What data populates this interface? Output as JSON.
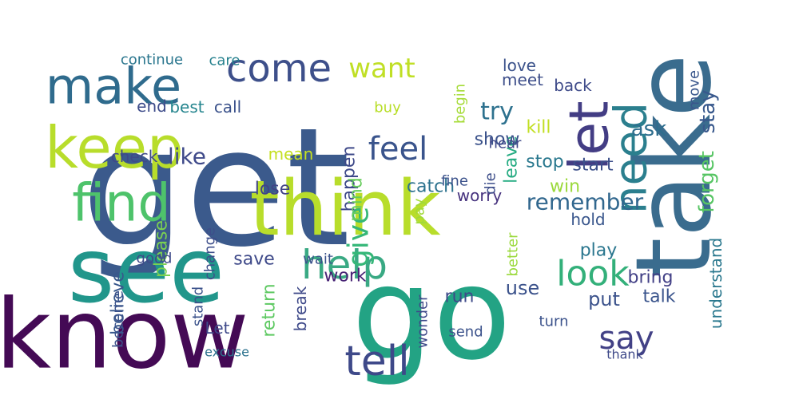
{
  "words": [
    {
      "text": "get",
      "color": "#3b5a8c"
    },
    {
      "text": "know",
      "color": "#440a55"
    },
    {
      "text": "go",
      "color": "#23a384"
    },
    {
      "text": "take",
      "color": "#3a6c8e"
    },
    {
      "text": "see",
      "color": "#21968b"
    },
    {
      "text": "think",
      "color": "#b8dd2b"
    },
    {
      "text": "make",
      "color": "#2f6b8d"
    },
    {
      "text": "keep",
      "color": "#b8dd2b"
    },
    {
      "text": "come",
      "color": "#3d4f8a"
    },
    {
      "text": "find",
      "color": "#4ec36b"
    },
    {
      "text": "let",
      "color": "#433d84"
    },
    {
      "text": "need",
      "color": "#2b7f8e"
    },
    {
      "text": "tell",
      "color": "#3e4989"
    },
    {
      "text": "look",
      "color": "#33b07a"
    },
    {
      "text": "feel",
      "color": "#3a548c"
    },
    {
      "text": "help",
      "color": "#39a983"
    },
    {
      "text": "want",
      "color": "#c0df25"
    },
    {
      "text": "say",
      "color": "#424186"
    },
    {
      "text": "remember",
      "color": "#31678e"
    },
    {
      "text": "give",
      "color": "#35b778"
    },
    {
      "text": "try",
      "color": "#2d718e"
    },
    {
      "text": "like",
      "color": "#3f4a8a"
    },
    {
      "text": "forget",
      "color": "#57c564"
    },
    {
      "text": "stay",
      "color": "#38588c"
    },
    {
      "text": "believe",
      "color": "#38588c"
    },
    {
      "text": "please",
      "color": "#7ad151"
    },
    {
      "text": "happen",
      "color": "#3e4989"
    },
    {
      "text": "mean",
      "color": "#c5e021"
    },
    {
      "text": "leave",
      "color": "#25ab82"
    },
    {
      "text": "ask",
      "color": "#2e6e8e"
    },
    {
      "text": "kill",
      "color": "#c2df23"
    },
    {
      "text": "show",
      "color": "#3b528b"
    },
    {
      "text": "stop",
      "color": "#2a788e"
    },
    {
      "text": "start",
      "color": "#3c4f8a"
    },
    {
      "text": "catch",
      "color": "#2c728e"
    },
    {
      "text": "lose",
      "color": "#414487"
    },
    {
      "text": "worry",
      "color": "#46327e"
    },
    {
      "text": "win",
      "color": "#9bd93c"
    },
    {
      "text": "hold",
      "color": "#39568c"
    },
    {
      "text": "mind",
      "color": "#67cc5c"
    },
    {
      "text": "change",
      "color": "#3d4e8a"
    },
    {
      "text": "save",
      "color": "#3e4989"
    },
    {
      "text": "wait",
      "color": "#3b528b"
    },
    {
      "text": "work",
      "color": "#482475"
    },
    {
      "text": "use",
      "color": "#3b528b"
    },
    {
      "text": "run",
      "color": "#3e4a89"
    },
    {
      "text": "put",
      "color": "#3b528b"
    },
    {
      "text": "bring",
      "color": "#424086"
    },
    {
      "text": "talk",
      "color": "#3a548c"
    },
    {
      "text": "play",
      "color": "#2a768e"
    },
    {
      "text": "understand",
      "color": "#2a788e"
    },
    {
      "text": "check",
      "color": "#3e4989"
    },
    {
      "text": "end",
      "color": "#3e4c8a"
    },
    {
      "text": "best",
      "color": "#25858e"
    },
    {
      "text": "call",
      "color": "#3b528b"
    },
    {
      "text": "care",
      "color": "#26818e"
    },
    {
      "text": "continue",
      "color": "#2a768e"
    },
    {
      "text": "love",
      "color": "#3b528b"
    },
    {
      "text": "meet",
      "color": "#3d4e8a"
    },
    {
      "text": "back",
      "color": "#3e4a89"
    },
    {
      "text": "move",
      "color": "#39568c"
    },
    {
      "text": "begin",
      "color": "#a5db36"
    },
    {
      "text": "buy",
      "color": "#b8de29"
    },
    {
      "text": "hear",
      "color": "#3f4889"
    },
    {
      "text": "fine",
      "color": "#3b528b"
    },
    {
      "text": "die",
      "color": "#3d4e8a"
    },
    {
      "text": "pay",
      "color": "#a0da39"
    },
    {
      "text": "better",
      "color": "#9bd93c"
    },
    {
      "text": "stand",
      "color": "#3b528b"
    },
    {
      "text": "become",
      "color": "#3b528b"
    },
    {
      "text": "Let",
      "color": "#3e4989"
    },
    {
      "text": "excuse",
      "color": "#2c728e"
    },
    {
      "text": "return",
      "color": "#5ec962"
    },
    {
      "text": "break",
      "color": "#3e4989"
    },
    {
      "text": "wonder",
      "color": "#3e4989"
    },
    {
      "text": "send",
      "color": "#3b528b"
    },
    {
      "text": "turn",
      "color": "#3b528b"
    },
    {
      "text": "thank",
      "color": "#3e4989"
    },
    {
      "text": "good",
      "color": "#3e4989"
    }
  ]
}
